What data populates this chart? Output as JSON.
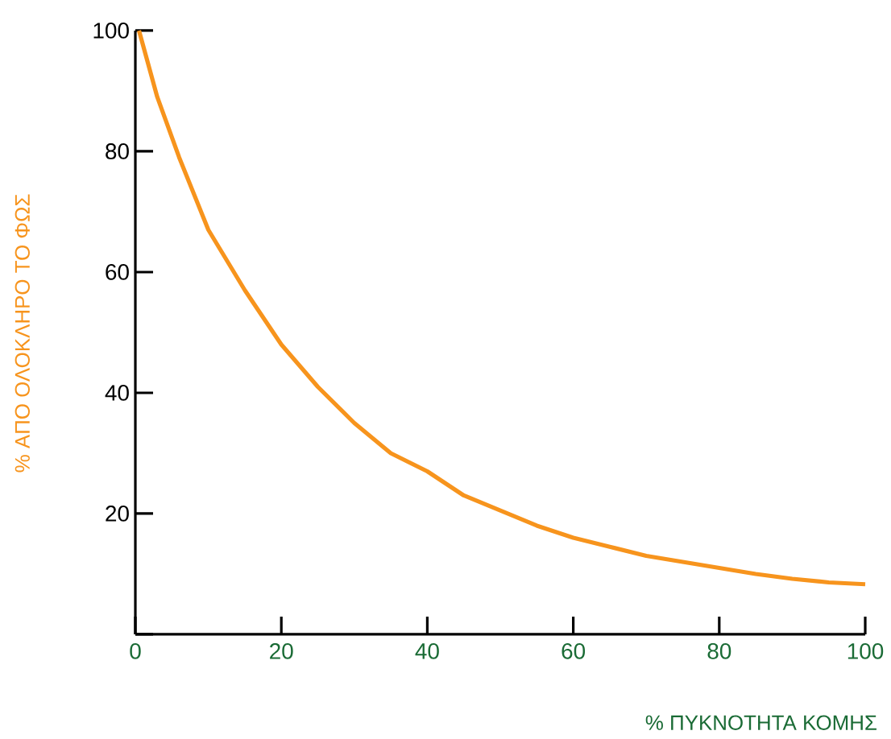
{
  "chart_data": {
    "type": "line",
    "xlabel": "% ΠΥΚΝΟΤΗΤΑ ΚΟΜΗΣ",
    "ylabel": "% ΑΠΟ ΟΛΟΚΛΗΡΟ ΤΟ ΦΩΣ",
    "xlim": [
      0,
      100
    ],
    "ylim": [
      0,
      100
    ],
    "xticks": [
      0,
      20,
      40,
      60,
      80,
      100
    ],
    "yticks": [
      {
        "value": 0,
        "label": null
      },
      20,
      40,
      60,
      80,
      100
    ],
    "x": [
      0.5,
      3,
      6,
      10,
      15,
      20,
      25,
      30,
      35,
      40,
      45,
      50,
      55,
      60,
      65,
      70,
      75,
      80,
      85,
      90,
      95,
      100
    ],
    "series": [
      {
        "color": "#f7941d",
        "values": [
          100,
          89,
          79,
          67,
          57,
          48,
          41,
          35,
          30,
          27,
          23,
          20.5,
          18,
          16,
          14.5,
          13,
          12,
          11,
          10,
          9.2,
          8.6,
          8.3
        ]
      }
    ],
    "grid": false,
    "marker": "none",
    "line_style": "solid"
  }
}
